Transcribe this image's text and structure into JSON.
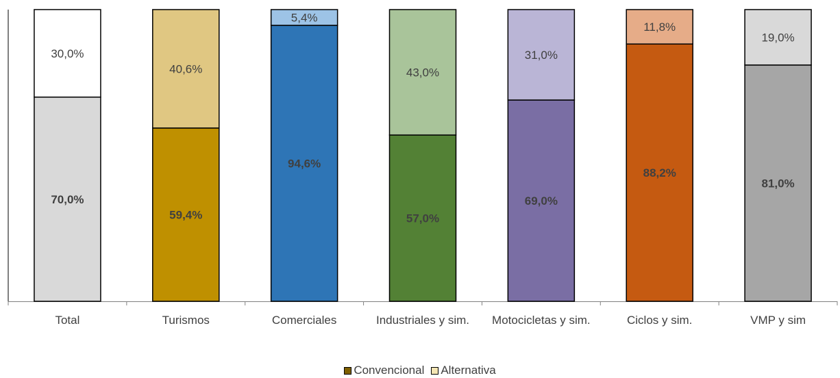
{
  "chart_data": {
    "type": "bar",
    "stacked": true,
    "percent": true,
    "categories": [
      "Total",
      "Turismos",
      "Comerciales",
      "Industriales y sim.",
      "Motocicletas y sim.",
      "Ciclos y sim.",
      "VMP y sim"
    ],
    "series": [
      {
        "name": "Convencional",
        "values": [
          70.0,
          59.4,
          94.6,
          57.0,
          69.0,
          88.2,
          81.0
        ],
        "labels": [
          "70,0%",
          "59,4%",
          "94,6%",
          "57,0%",
          "69,0%",
          "88,2%",
          "81,0%"
        ],
        "colors": [
          "#d9d9d9",
          "#bf9000",
          "#2e75b6",
          "#538135",
          "#7a6ea4",
          "#c55a11",
          "#a6a6a6"
        ],
        "legend_color": "#7f6000"
      },
      {
        "name": "Alternativa",
        "values": [
          30.0,
          40.6,
          5.4,
          43.0,
          31.0,
          11.8,
          19.0
        ],
        "labels": [
          "30,0%",
          "40,6%",
          "5,4%",
          "43,0%",
          "31,0%",
          "11,8%",
          "19,0%"
        ],
        "colors": [
          "#ffffff",
          "#e0c782",
          "#9dc3e6",
          "#a9c49a",
          "#bab5d6",
          "#e6ac88",
          "#d9d9d9"
        ],
        "legend_color": "#f5e6b4"
      }
    ],
    "ylim": [
      0,
      100
    ],
    "legend_position": "bottom",
    "grid": false
  }
}
